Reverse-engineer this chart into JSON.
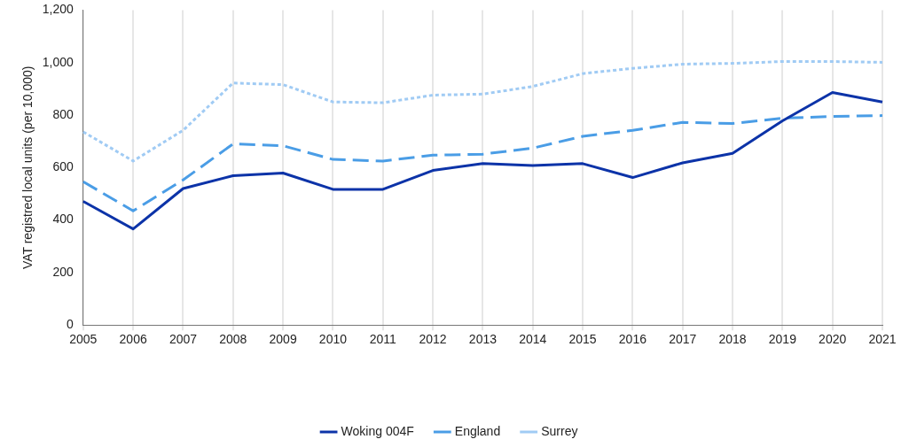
{
  "chart_data": {
    "type": "line",
    "ylabel": "VAT registred local units (per 10,000)",
    "categories": [
      "2005",
      "2006",
      "2007",
      "2008",
      "2009",
      "2010",
      "2011",
      "2012",
      "2013",
      "2014",
      "2015",
      "2016",
      "2017",
      "2018",
      "2019",
      "2020",
      "2021"
    ],
    "series": [
      {
        "name": "Woking 004F",
        "color": "#0c33a8",
        "line_style": "solid",
        "values": [
          471,
          366,
          520,
          569,
          579,
          517,
          517,
          589,
          615,
          608,
          615,
          562,
          618,
          654,
          778,
          886,
          850
        ]
      },
      {
        "name": "England",
        "color": "#4a9de6",
        "line_style": "dashed",
        "values": [
          546,
          435,
          553,
          690,
          683,
          631,
          625,
          647,
          651,
          674,
          719,
          742,
          772,
          768,
          788,
          795,
          798
        ]
      },
      {
        "name": "Surrey",
        "color": "#a0cbf4",
        "line_style": "dotted",
        "values": [
          736,
          625,
          742,
          922,
          916,
          850,
          847,
          876,
          880,
          909,
          958,
          978,
          994,
          997,
          1004,
          1004,
          1001
        ]
      }
    ],
    "ylim": [
      0,
      1200
    ],
    "yticks": [
      {
        "value": 0,
        "label": "0"
      },
      {
        "value": 200,
        "label": "200"
      },
      {
        "value": 400,
        "label": "400"
      },
      {
        "value": 600,
        "label": "600"
      },
      {
        "value": 800,
        "label": "800"
      },
      {
        "value": 1000,
        "label": "1,000"
      },
      {
        "value": 1200,
        "label": "1,200"
      }
    ],
    "grid": "x",
    "legend": "bottom",
    "marker": "none"
  }
}
